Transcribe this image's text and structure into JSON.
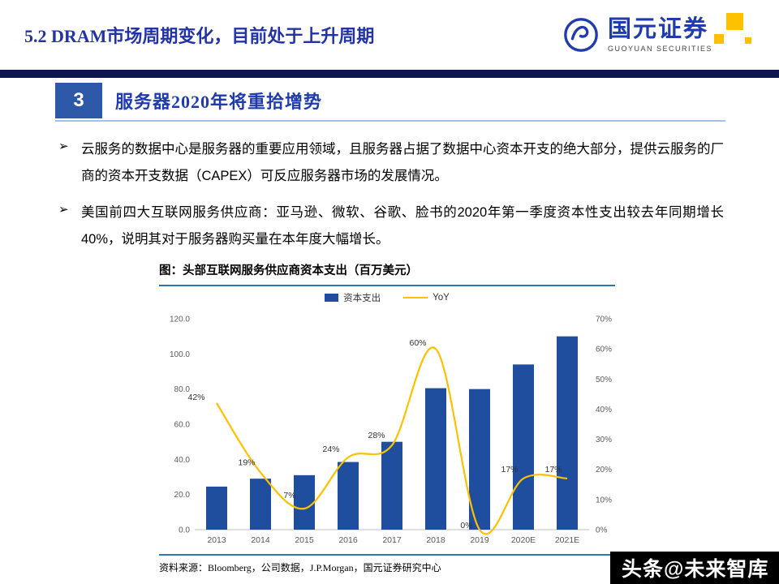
{
  "header": {
    "title": "5.2 DRAM市场周期变化，目前处于上升周期",
    "logo": {
      "cn": "国元证券",
      "en": "GUOYUAN SECURITIES"
    }
  },
  "section": {
    "number": "3",
    "title": "服务器2020年将重拾增势"
  },
  "bullet_char": "➢",
  "bullets": [
    "云服务的数据中心是服务器的重要应用领域，且服务器占据了数据中心资本开支的绝大部分，提供云服务的厂商的资本开支数据（CAPEX）可反应服务器市场的发展情况。",
    "美国前四大互联网服务供应商：亚马逊、微软、谷歌、脸书的2020年第一季度资本性支出较去年同期增长40%，说明其对于服务器购买量在本年度大幅增长。"
  ],
  "chart": {
    "title": "图：头部互联网服务供应商资本支出（百万美元）",
    "source": "资料来源：Bloomberg，公司数据，J.P.Morgan，国元证券研究中心"
  },
  "chart_data": {
    "type": "bar+line",
    "title": "头部互联网服务供应商资本支出（百万美元）",
    "categories": [
      "2013",
      "2014",
      "2015",
      "2016",
      "2017",
      "2018",
      "2019",
      "2020E",
      "2021E"
    ],
    "series": [
      {
        "name": "资本支出",
        "type": "bar",
        "color": "#1F4E9E",
        "values": [
          24.5,
          29,
          31,
          38.5,
          50,
          80.5,
          80,
          94,
          110
        ]
      },
      {
        "name": "YoY",
        "type": "line",
        "color": "#FFC000",
        "values": [
          42,
          19,
          7,
          24,
          28,
          60,
          0,
          17,
          17
        ],
        "labels": [
          "42%",
          "19%",
          "7%",
          "24%",
          "28%",
          "60%",
          "0%",
          "17%",
          "17%"
        ]
      }
    ],
    "left_axis": {
      "min": 0,
      "max": 120,
      "step": 20,
      "labels": [
        "0.0",
        "20.0",
        "40.0",
        "60.0",
        "80.0",
        "100.0",
        "120.0"
      ]
    },
    "right_axis": {
      "min": 0,
      "max": 70,
      "step": 10,
      "labels": [
        "0%",
        "10%",
        "20%",
        "30%",
        "40%",
        "50%",
        "60%",
        "70%"
      ]
    },
    "grid": false,
    "legend_position": "top"
  },
  "watermark": "头条@未来智库",
  "colors": {
    "brand_blue": "#1F3BAE",
    "navy_bar": "#0B1550",
    "section_box": "#2E58A8",
    "chart_border": "#2E75B6",
    "bar": "#1F4E9E",
    "line": "#FFC000",
    "logo_accent": "#FFC000"
  }
}
